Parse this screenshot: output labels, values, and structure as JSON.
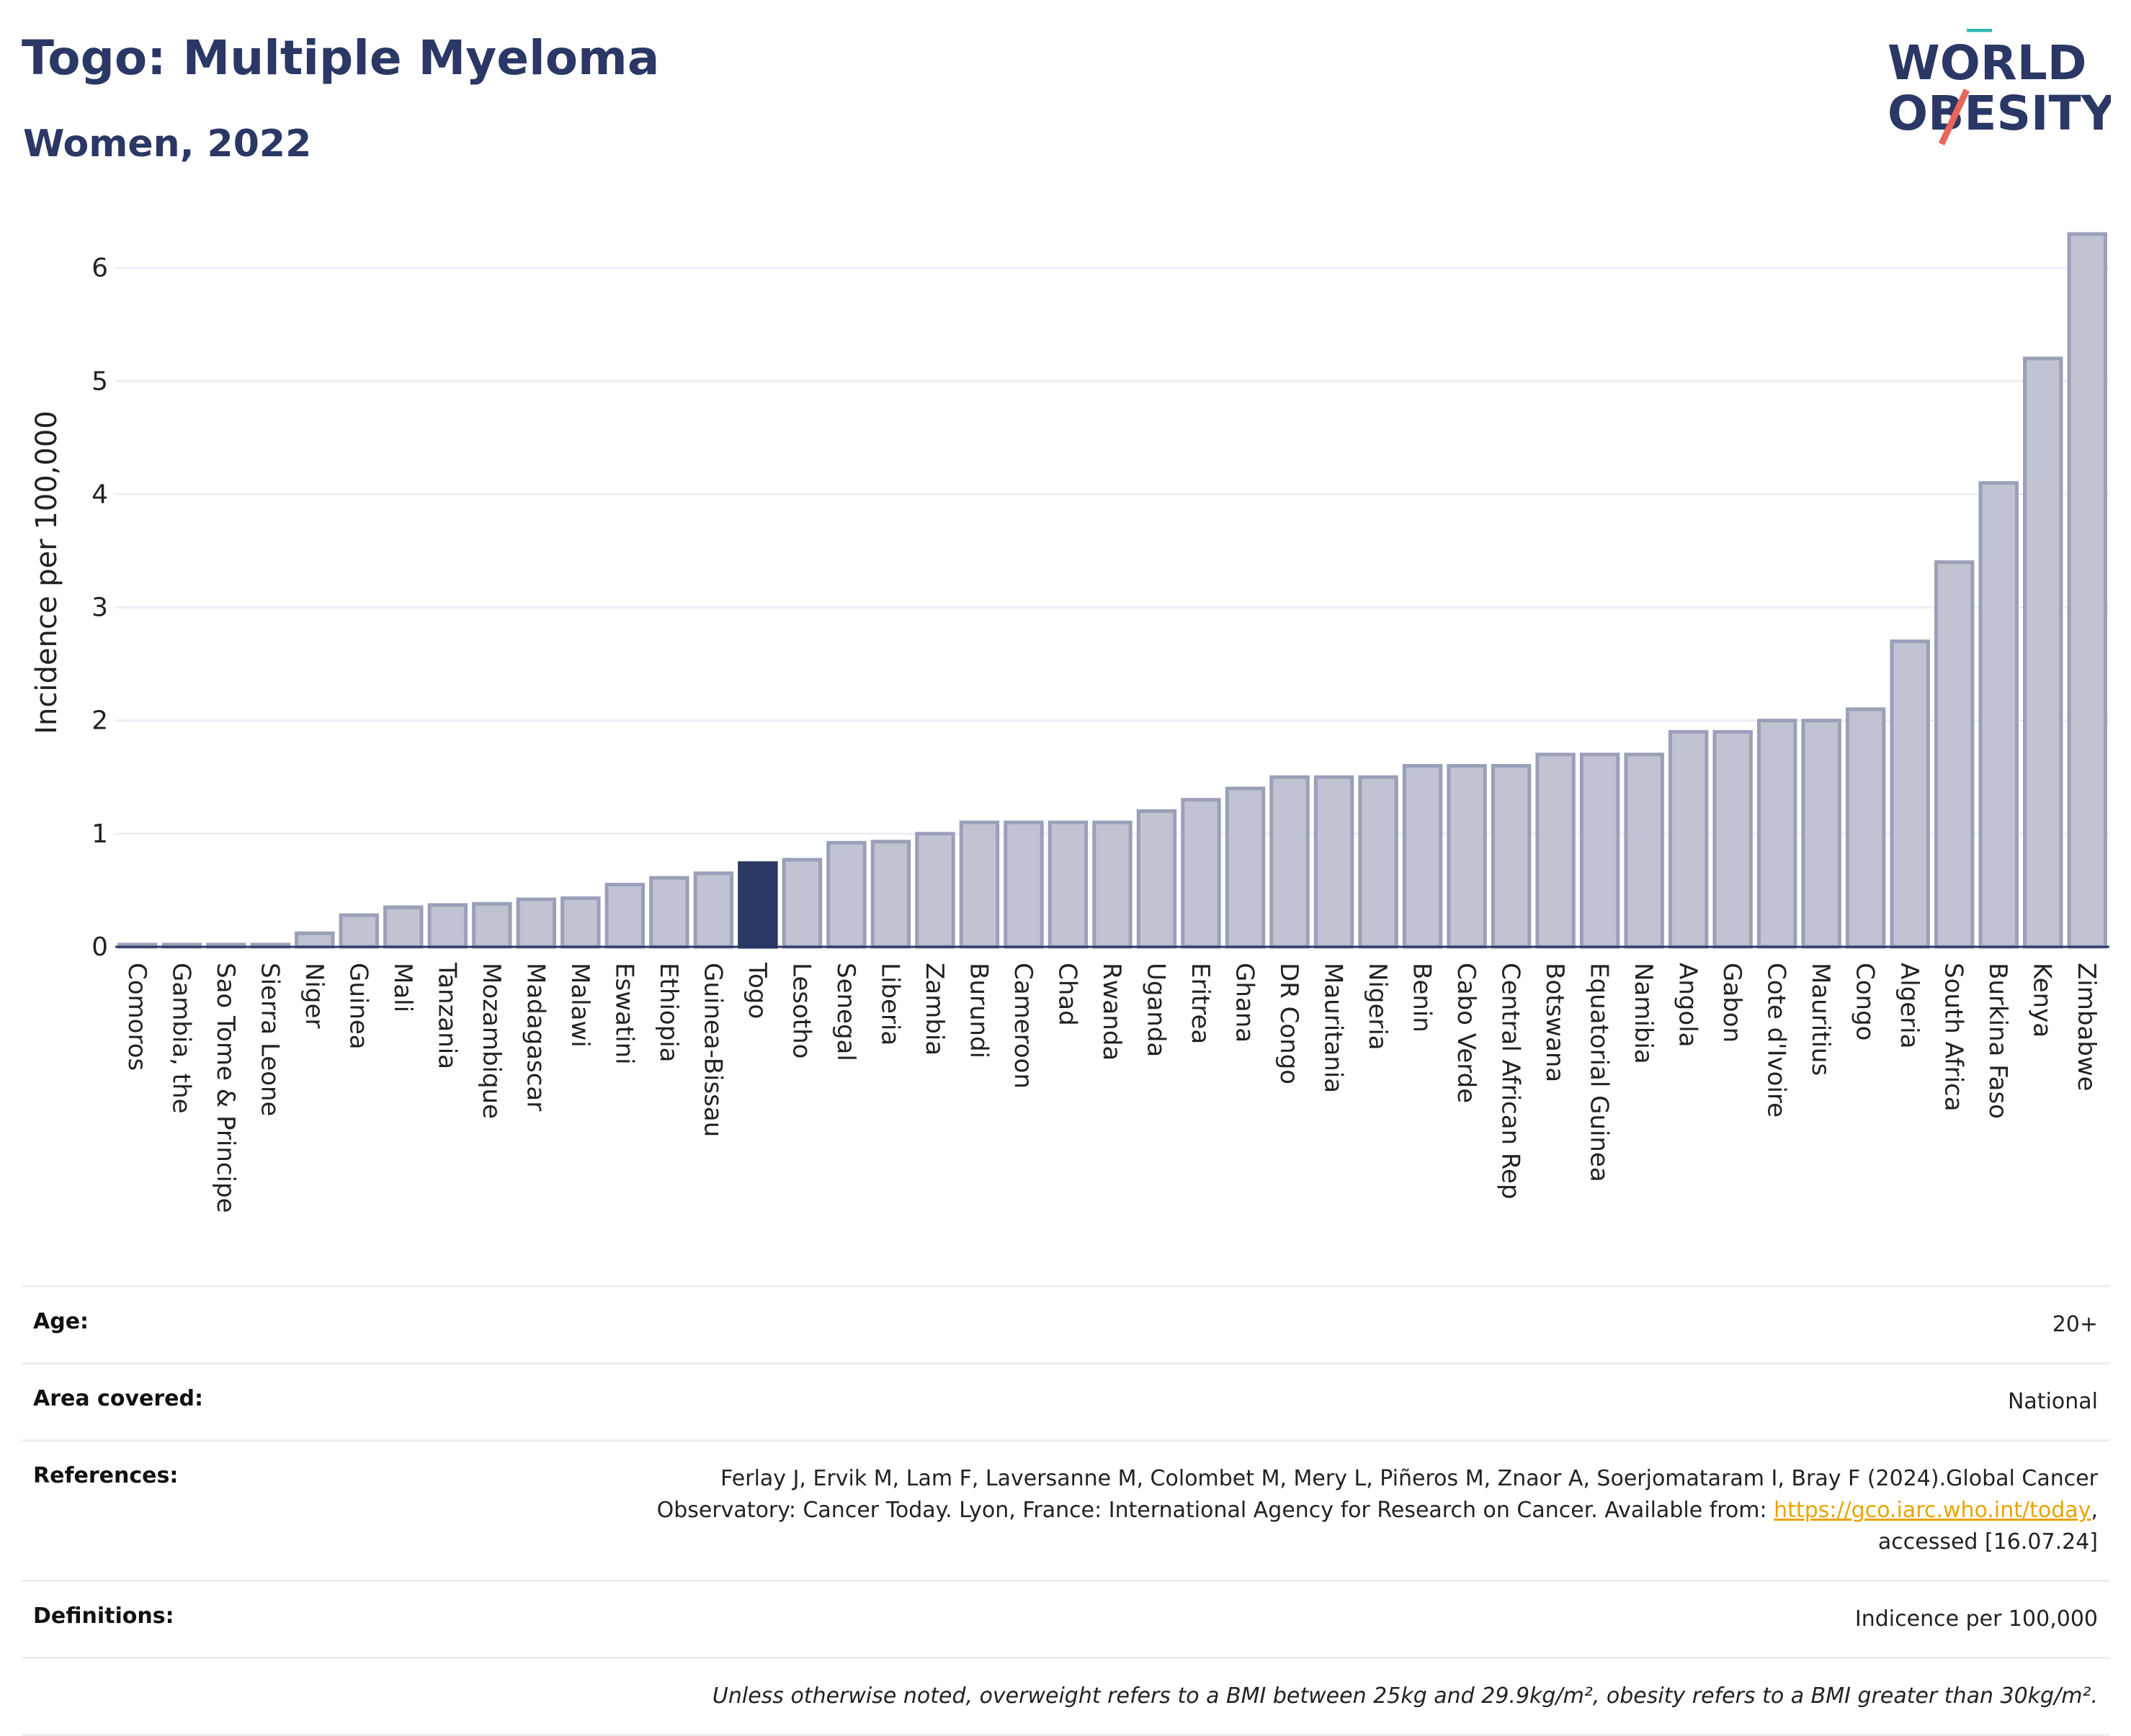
{
  "header": {
    "title": "Togo: Multiple Myeloma",
    "subtitle": "Women, 2022",
    "logo_line1": "WORLD",
    "logo_line2": "OBESITY"
  },
  "colors": {
    "highlight": "#2b3764",
    "bar": "#bfc3d2",
    "bar_edge": "#9aa0b8",
    "grid": "#eceef5"
  },
  "chart_data": {
    "type": "bar",
    "title": "Togo: Multiple Myeloma",
    "subtitle": "Women, 2022",
    "xlabel": "",
    "ylabel": "Incidence per 100,000",
    "ylim": [
      0,
      6.5
    ],
    "yticks": [
      0,
      1,
      2,
      3,
      4,
      5,
      6
    ],
    "grid": true,
    "highlight": "Togo",
    "categories": [
      "Comoros",
      "Gambia, the",
      "Sao Tome & Principe",
      "Sierra Leone",
      "Niger",
      "Guinea",
      "Mali",
      "Tanzania",
      "Mozambique",
      "Madagascar",
      "Malawi",
      "Eswatini",
      "Ethiopia",
      "Guinea-Bissau",
      "Togo",
      "Lesotho",
      "Senegal",
      "Liberia",
      "Zambia",
      "Burundi",
      "Cameroon",
      "Chad",
      "Rwanda",
      "Uganda",
      "Eritrea",
      "Ghana",
      "DR Congo",
      "Mauritania",
      "Nigeria",
      "Benin",
      "Cabo Verde",
      "Central African Rep",
      "Botswana",
      "Equatorial Guinea",
      "Namibia",
      "Angola",
      "Gabon",
      "Cote d'Ivoire",
      "Mauritius",
      "Congo",
      "Algeria",
      "South Africa",
      "Burkina Faso",
      "Kenya",
      "Zimbabwe"
    ],
    "values": [
      0.02,
      0.02,
      0.02,
      0.02,
      0.12,
      0.28,
      0.35,
      0.37,
      0.38,
      0.42,
      0.43,
      0.55,
      0.61,
      0.65,
      0.74,
      0.77,
      0.92,
      0.93,
      1.0,
      1.1,
      1.1,
      1.1,
      1.1,
      1.2,
      1.3,
      1.4,
      1.5,
      1.5,
      1.5,
      1.6,
      1.6,
      1.6,
      1.7,
      1.7,
      1.7,
      1.9,
      1.9,
      2.0,
      2.0,
      2.1,
      2.7,
      3.4,
      4.1,
      5.2,
      6.3
    ]
  },
  "info": {
    "age_label": "Age:",
    "age_value": "20+",
    "area_label": "Area covered:",
    "area_value": "National",
    "refs_label": "References:",
    "refs_line1": "Ferlay J, Ervik M, Lam F, Laversanne M, Colombet M, Mery L, Piñeros M, Znaor A, Soerjomataram I, Bray F (2024).Global Cancer",
    "refs_line2": "Observatory: Cancer Today. Lyon, France: International Agency for Research on Cancer. Available from: ",
    "refs_link": "https://gco.iarc.who.int/today",
    "refs_line2_end": ",",
    "refs_line3": "accessed [16.07.24]",
    "defs_label": "Definitions:",
    "defs_value": "Indicence per 100,000",
    "note": "Unless otherwise noted, overweight refers to a BMI between 25kg and 29.9kg/m², obesity refers to a BMI greater than 30kg/m²."
  }
}
